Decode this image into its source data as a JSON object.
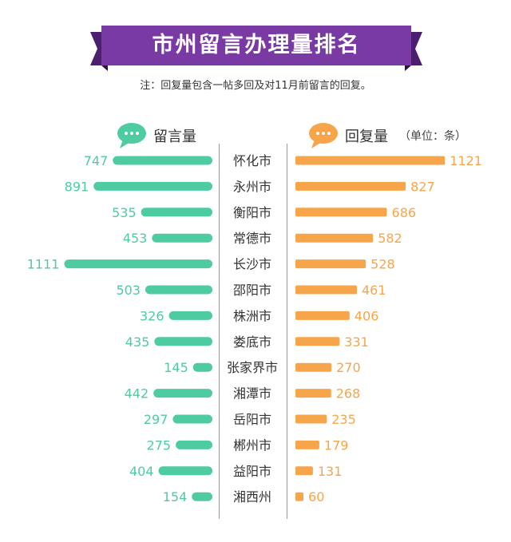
{
  "title": "市州留言办理量排名",
  "note": "注：回复量包含一帖多回及对11月前留言的回复。",
  "legend": {
    "left_label": "留言量",
    "right_label": "回复量",
    "unit": "（单位：条）"
  },
  "colors": {
    "banner": "#7a3aa3",
    "banner_fold": "#4d1f70",
    "left": "#4ecba0",
    "right": "#f7a54a",
    "divider": "#999999"
  },
  "icons": {
    "left_bubble": "speech-bubble-icon",
    "right_bubble": "speech-bubble-icon"
  },
  "chart_data": {
    "type": "bar",
    "orientation": "butterfly",
    "categories": [
      "怀化市",
      "永州市",
      "衡阳市",
      "常德市",
      "长沙市",
      "邵阳市",
      "株洲市",
      "娄底市",
      "张家界市",
      "湘潭市",
      "岳阳市",
      "郴州市",
      "益阳市",
      "湘西州"
    ],
    "series": [
      {
        "name": "留言量",
        "values": [
          747,
          891,
          535,
          453,
          1111,
          503,
          326,
          435,
          145,
          442,
          297,
          275,
          404,
          154
        ]
      },
      {
        "name": "回复量",
        "values": [
          1121,
          827,
          686,
          582,
          528,
          461,
          406,
          331,
          270,
          268,
          235,
          179,
          131,
          60
        ]
      }
    ]
  }
}
